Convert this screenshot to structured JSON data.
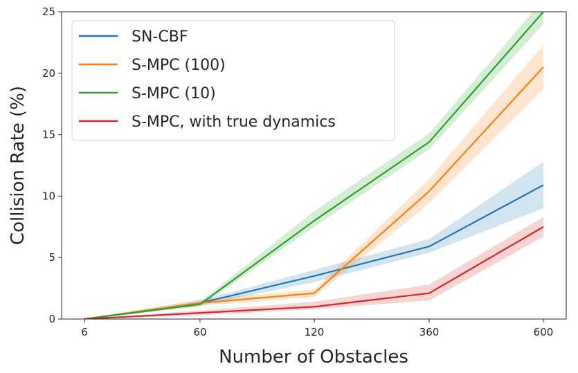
{
  "chart_data": {
    "type": "line",
    "title": "",
    "xlabel": "Number of Obstacles",
    "ylabel": "Collision Rate (%)",
    "categories": [
      "6",
      "60",
      "120",
      "360",
      "600"
    ],
    "ylim": [
      0,
      25
    ],
    "yticks": [
      "0",
      "5",
      "10",
      "15",
      "20",
      "25"
    ],
    "grid": false,
    "legend_position": "upper-left",
    "series": [
      {
        "name": "SN-CBF",
        "color": "#1f77b4",
        "values": [
          0,
          1.3,
          3.5,
          5.9,
          10.9
        ],
        "lower": [
          0,
          1.1,
          3.0,
          5.4,
          9.0
        ],
        "upper": [
          0,
          1.5,
          4.0,
          6.5,
          12.8
        ]
      },
      {
        "name": "S-MPC (100)",
        "color": "#ff7f0e",
        "values": [
          0,
          1.3,
          2.1,
          10.4,
          20.5
        ],
        "lower": [
          0,
          1.1,
          1.8,
          9.4,
          18.7
        ],
        "upper": [
          0,
          1.6,
          2.4,
          11.4,
          22.3
        ]
      },
      {
        "name": "S-MPC (10)",
        "color": "#2ca02c",
        "values": [
          0,
          1.2,
          8.0,
          14.4,
          25.0
        ],
        "lower": [
          0,
          1.0,
          7.5,
          13.8,
          24.0
        ],
        "upper": [
          0,
          1.4,
          8.8,
          15.1,
          26.0
        ]
      },
      {
        "name": "S-MPC, with true dynamics",
        "color": "#d62728",
        "values": [
          0,
          0.5,
          1.0,
          2.1,
          7.5
        ],
        "lower": [
          0,
          0.3,
          0.8,
          1.5,
          6.7
        ],
        "upper": [
          0,
          0.7,
          1.4,
          2.8,
          8.3
        ]
      }
    ]
  }
}
